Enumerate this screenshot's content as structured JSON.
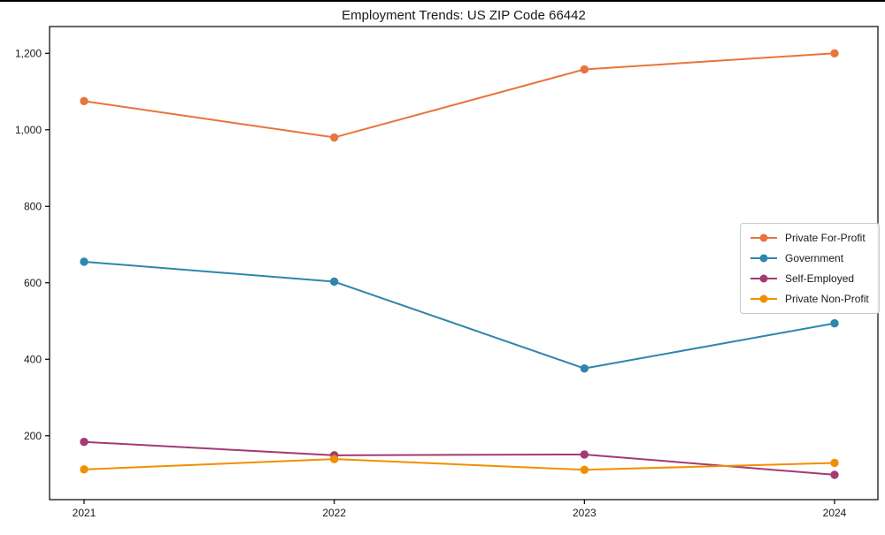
{
  "chart_data": {
    "type": "line",
    "title": "Employment Trends: US ZIP Code 66442",
    "x": [
      2021,
      2022,
      2023,
      2024
    ],
    "x_tick_labels": [
      "2021",
      "2022",
      "2023",
      "2024"
    ],
    "series": [
      {
        "name": "Private For-Profit",
        "color": "#E8743B",
        "values": [
          1075,
          980,
          1158,
          1200
        ]
      },
      {
        "name": "Government",
        "color": "#2E86AB",
        "values": [
          655,
          603,
          376,
          494
        ]
      },
      {
        "name": "Self-Employed",
        "color": "#A23B72",
        "values": [
          184,
          149,
          151,
          98
        ]
      },
      {
        "name": "Private Non-Profit",
        "color": "#F18F01",
        "values": [
          112,
          139,
          111,
          129
        ]
      }
    ],
    "yticks": [
      200,
      400,
      600,
      800,
      1000,
      1200
    ],
    "ytick_labels": [
      "200",
      "400",
      "600",
      "800",
      "1,000",
      "1,200"
    ],
    "ylim": [
      33,
      1270
    ],
    "grid": false,
    "marker": "o",
    "legend_position": "center right",
    "axis_color": "#000000",
    "text_color": "#1a1a1a"
  }
}
